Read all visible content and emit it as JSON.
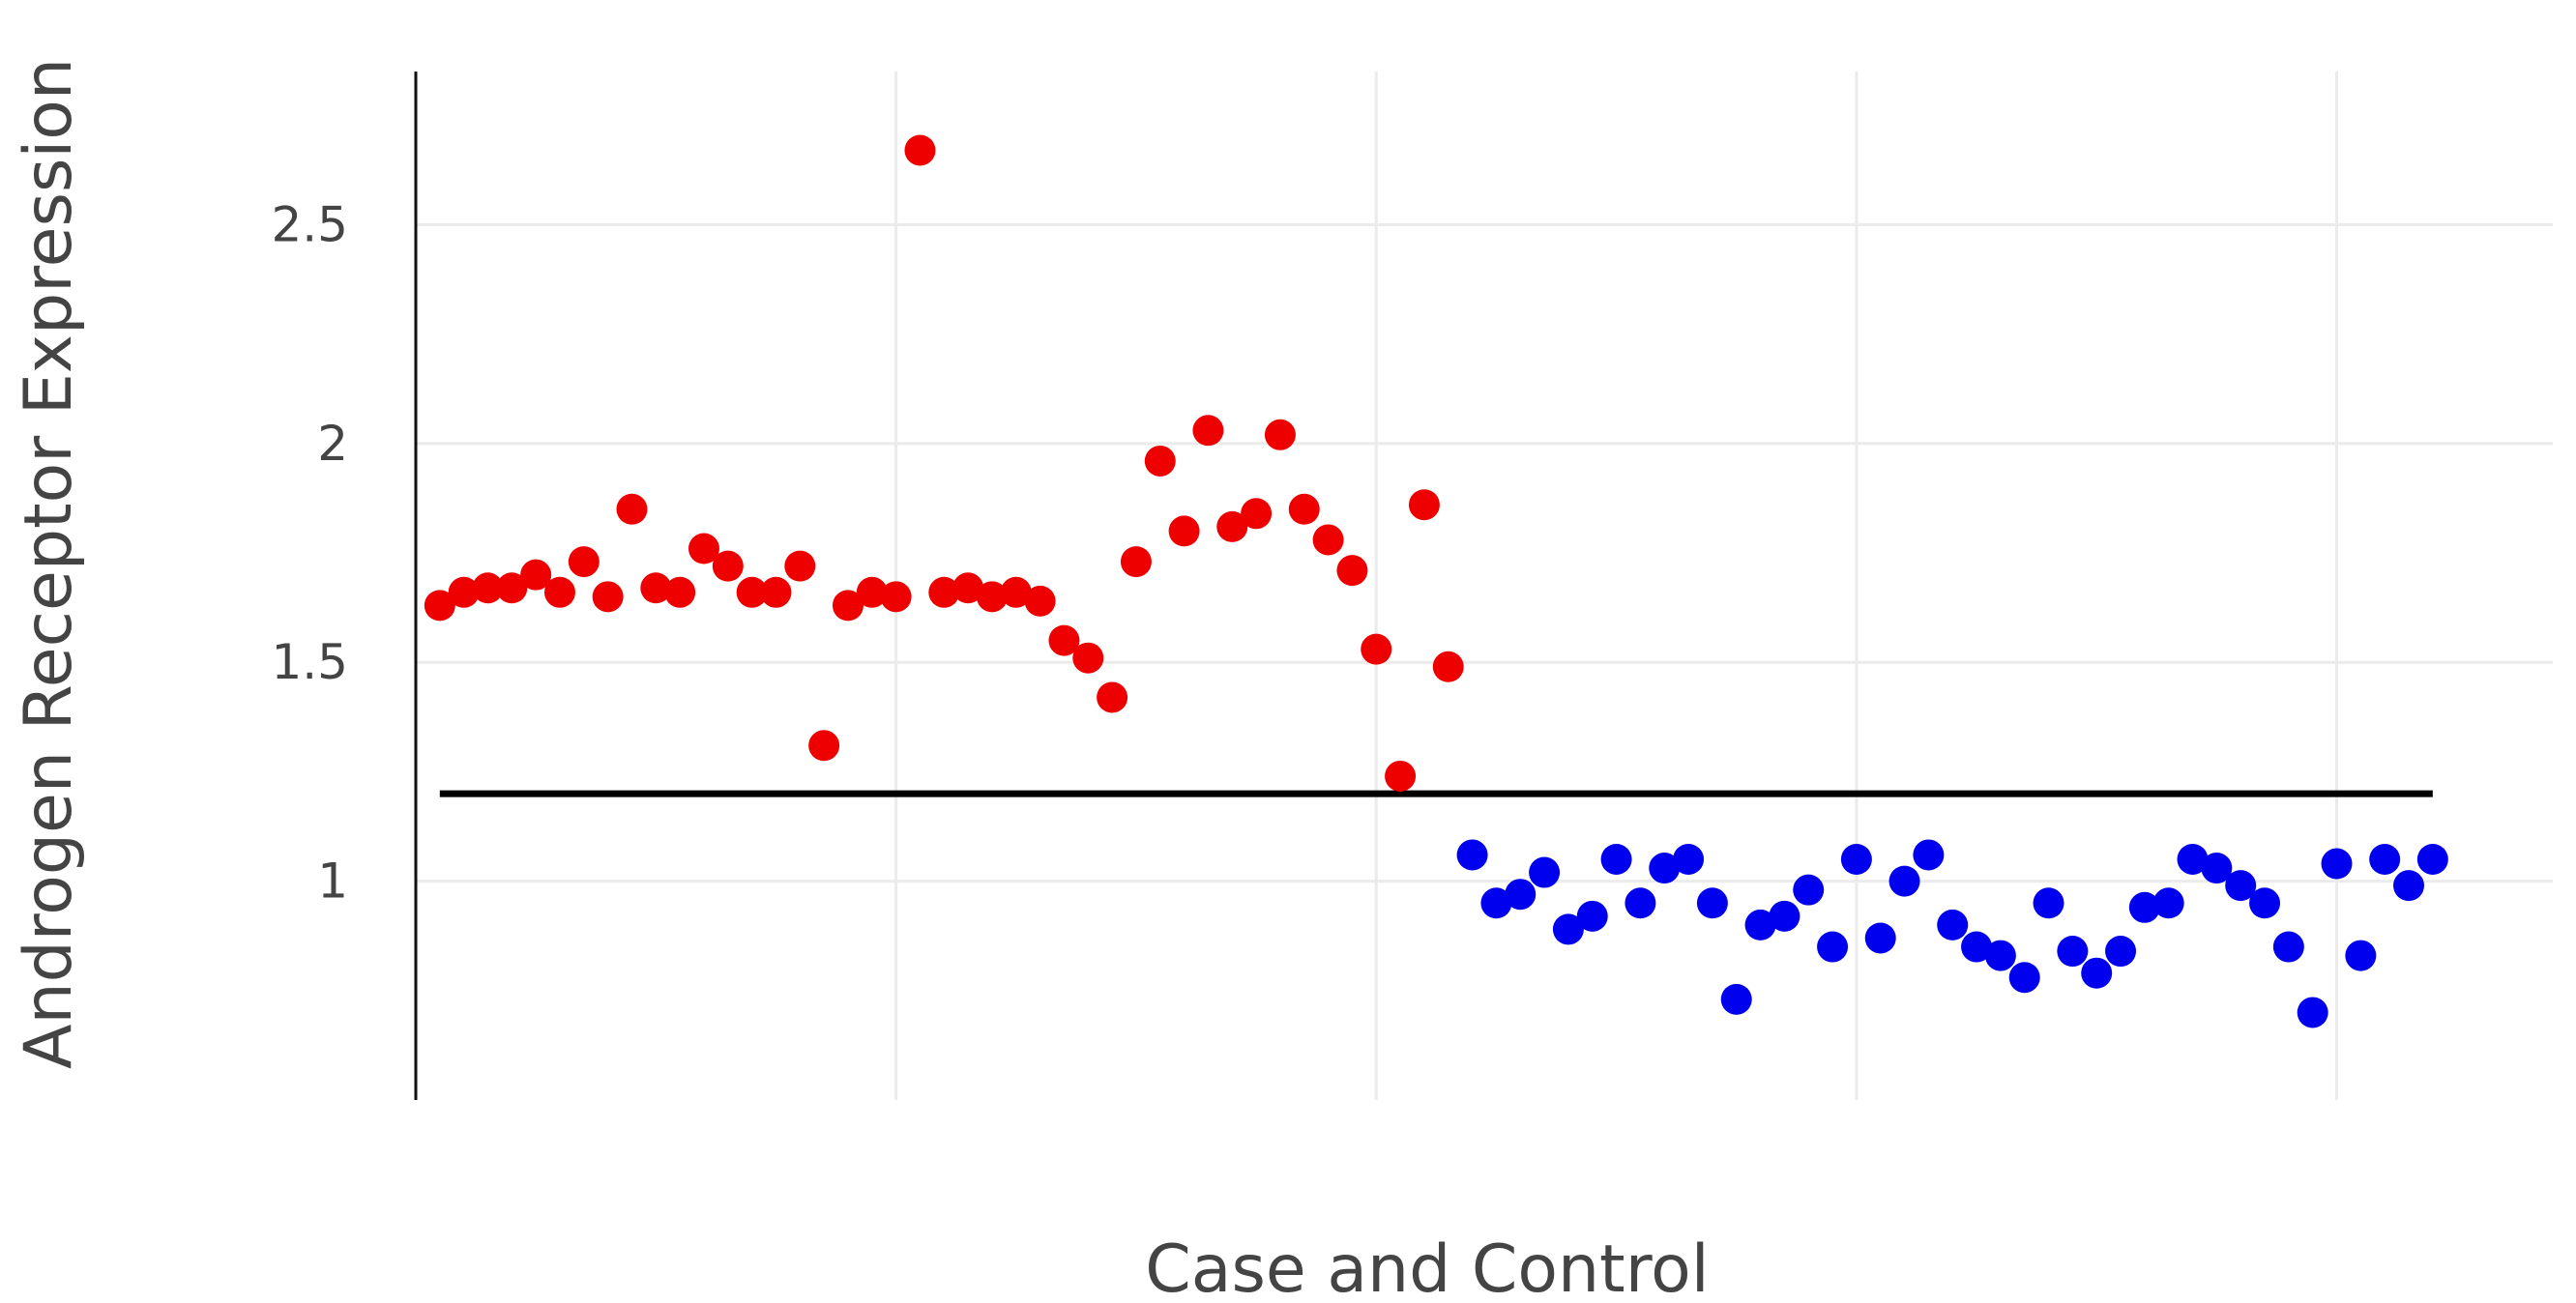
{
  "chart_data": {
    "type": "scatter",
    "title": "",
    "xlabel": "Case and Control",
    "ylabel": "Androgen Receptor Expression",
    "xlim": [
      0,
      89
    ],
    "ylim": [
      0.5,
      2.85
    ],
    "y_ticks": [
      1,
      1.5,
      2,
      2.5
    ],
    "y_tick_labels": [
      "1",
      "1.5",
      "2",
      "2.5"
    ],
    "x_gridlines": [
      20,
      40,
      60,
      80
    ],
    "grid": true,
    "legend": "none",
    "threshold": {
      "y": 1.2,
      "x_start": 1,
      "x_end": 84
    },
    "series": [
      {
        "color": "#ee0000",
        "x": [
          1,
          2,
          3,
          4,
          5,
          6,
          7,
          8,
          9,
          10,
          11,
          12,
          13,
          14,
          15,
          16,
          17,
          18,
          19,
          20,
          21,
          22,
          23,
          24,
          25,
          26,
          27,
          28,
          29,
          30,
          31,
          32,
          33,
          34,
          35,
          36,
          37,
          38,
          39,
          40,
          41,
          42,
          43
        ],
        "values": [
          1.63,
          1.66,
          1.67,
          1.67,
          1.7,
          1.66,
          1.73,
          1.65,
          1.85,
          1.67,
          1.66,
          1.76,
          1.72,
          1.66,
          1.66,
          1.72,
          1.31,
          1.63,
          1.66,
          1.65,
          2.67,
          1.66,
          1.67,
          1.65,
          1.66,
          1.64,
          1.55,
          1.51,
          1.42,
          1.73,
          1.96,
          1.8,
          2.03,
          1.81,
          1.84,
          2.02,
          1.85,
          1.78,
          1.71,
          1.53,
          1.24,
          1.86,
          1.49
        ]
      },
      {
        "color": "#0000ee",
        "x": [
          44,
          45,
          46,
          47,
          48,
          49,
          50,
          51,
          52,
          53,
          54,
          55,
          56,
          57,
          58,
          59,
          60,
          61,
          62,
          63,
          64,
          65,
          66,
          67,
          68,
          69,
          70,
          71,
          72,
          73,
          74,
          75,
          76,
          77,
          78,
          79,
          80,
          81,
          82,
          83,
          84
        ],
        "values": [
          1.06,
          0.95,
          0.97,
          1.02,
          0.89,
          0.92,
          1.05,
          0.95,
          1.03,
          1.05,
          0.95,
          0.73,
          0.9,
          0.92,
          0.98,
          0.85,
          1.05,
          0.87,
          1.0,
          1.06,
          0.9,
          0.85,
          0.83,
          0.78,
          0.95,
          0.84,
          0.79,
          0.84,
          0.94,
          0.95,
          1.05,
          1.03,
          0.99,
          0.95,
          0.85,
          0.7,
          1.04,
          0.83,
          1.05,
          0.99,
          1.05
        ]
      }
    ]
  }
}
